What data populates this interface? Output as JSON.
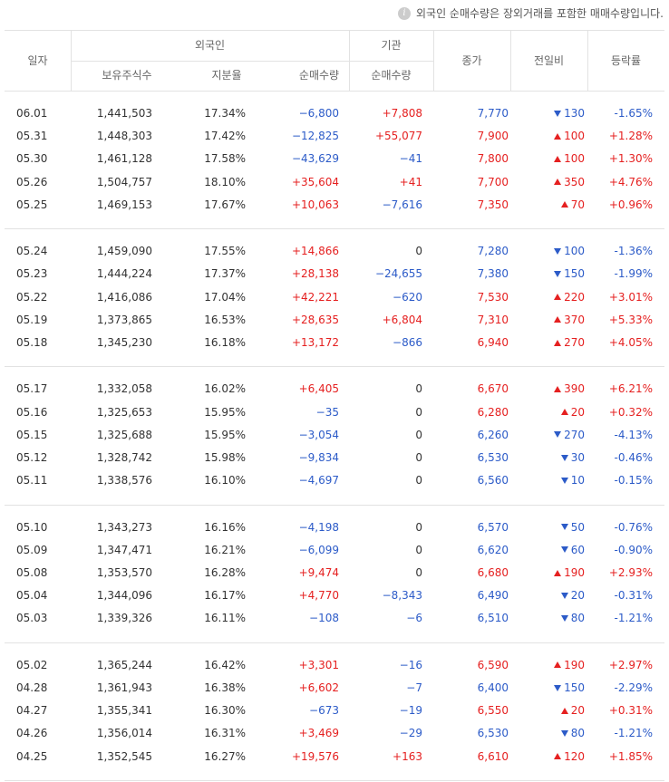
{
  "note": "외국인 순매수량은 장외거래를 포함한 매매수량입니다.",
  "header": {
    "date": "일자",
    "foreign": "외국인",
    "holdings": "보유주식수",
    "ratio": "지분율",
    "foreign_net": "순매수량",
    "institution": "기관",
    "institution_net": "순매수량",
    "close": "종가",
    "change": "전일비",
    "rate": "등락률"
  },
  "table": {
    "groups": [
      [
        [
          "06.01",
          "1,441,503",
          "17.34%",
          "−6,800",
          "+7,808",
          "7,770",
          "down",
          "130",
          "-1.65%"
        ],
        [
          "05.31",
          "1,448,303",
          "17.42%",
          "−12,825",
          "+55,077",
          "7,900",
          "up",
          "100",
          "+1.28%"
        ],
        [
          "05.30",
          "1,461,128",
          "17.58%",
          "−43,629",
          "−41",
          "7,800",
          "up",
          "100",
          "+1.30%"
        ],
        [
          "05.26",
          "1,504,757",
          "18.10%",
          "+35,604",
          "+41",
          "7,700",
          "up",
          "350",
          "+4.76%"
        ],
        [
          "05.25",
          "1,469,153",
          "17.67%",
          "+10,063",
          "−7,616",
          "7,350",
          "up",
          "70",
          "+0.96%"
        ]
      ],
      [
        [
          "05.24",
          "1,459,090",
          "17.55%",
          "+14,866",
          "0",
          "7,280",
          "down",
          "100",
          "-1.36%"
        ],
        [
          "05.23",
          "1,444,224",
          "17.37%",
          "+28,138",
          "−24,655",
          "7,380",
          "down",
          "150",
          "-1.99%"
        ],
        [
          "05.22",
          "1,416,086",
          "17.04%",
          "+42,221",
          "−620",
          "7,530",
          "up",
          "220",
          "+3.01%"
        ],
        [
          "05.19",
          "1,373,865",
          "16.53%",
          "+28,635",
          "+6,804",
          "7,310",
          "up",
          "370",
          "+5.33%"
        ],
        [
          "05.18",
          "1,345,230",
          "16.18%",
          "+13,172",
          "−866",
          "6,940",
          "up",
          "270",
          "+4.05%"
        ]
      ],
      [
        [
          "05.17",
          "1,332,058",
          "16.02%",
          "+6,405",
          "0",
          "6,670",
          "up",
          "390",
          "+6.21%"
        ],
        [
          "05.16",
          "1,325,653",
          "15.95%",
          "−35",
          "0",
          "6,280",
          "up",
          "20",
          "+0.32%"
        ],
        [
          "05.15",
          "1,325,688",
          "15.95%",
          "−3,054",
          "0",
          "6,260",
          "down",
          "270",
          "-4.13%"
        ],
        [
          "05.12",
          "1,328,742",
          "15.98%",
          "−9,834",
          "0",
          "6,530",
          "down",
          "30",
          "-0.46%"
        ],
        [
          "05.11",
          "1,338,576",
          "16.10%",
          "−4,697",
          "0",
          "6,560",
          "down",
          "10",
          "-0.15%"
        ]
      ],
      [
        [
          "05.10",
          "1,343,273",
          "16.16%",
          "−4,198",
          "0",
          "6,570",
          "down",
          "50",
          "-0.76%"
        ],
        [
          "05.09",
          "1,347,471",
          "16.21%",
          "−6,099",
          "0",
          "6,620",
          "down",
          "60",
          "-0.90%"
        ],
        [
          "05.08",
          "1,353,570",
          "16.28%",
          "+9,474",
          "0",
          "6,680",
          "up",
          "190",
          "+2.93%"
        ],
        [
          "05.04",
          "1,344,096",
          "16.17%",
          "+4,770",
          "−8,343",
          "6,490",
          "down",
          "20",
          "-0.31%"
        ],
        [
          "05.03",
          "1,339,326",
          "16.11%",
          "−108",
          "−6",
          "6,510",
          "down",
          "80",
          "-1.21%"
        ]
      ],
      [
        [
          "05.02",
          "1,365,244",
          "16.42%",
          "+3,301",
          "−16",
          "6,590",
          "up",
          "190",
          "+2.97%"
        ],
        [
          "04.28",
          "1,361,943",
          "16.38%",
          "+6,602",
          "−7",
          "6,400",
          "down",
          "150",
          "-2.29%"
        ],
        [
          "04.27",
          "1,355,341",
          "16.30%",
          "−673",
          "−19",
          "6,550",
          "up",
          "20",
          "+0.31%"
        ],
        [
          "04.26",
          "1,356,014",
          "16.31%",
          "+3,469",
          "−29",
          "6,530",
          "down",
          "80",
          "-1.21%"
        ],
        [
          "04.25",
          "1,352,545",
          "16.27%",
          "+19,576",
          "+163",
          "6,610",
          "up",
          "120",
          "+1.85%"
        ]
      ]
    ]
  }
}
